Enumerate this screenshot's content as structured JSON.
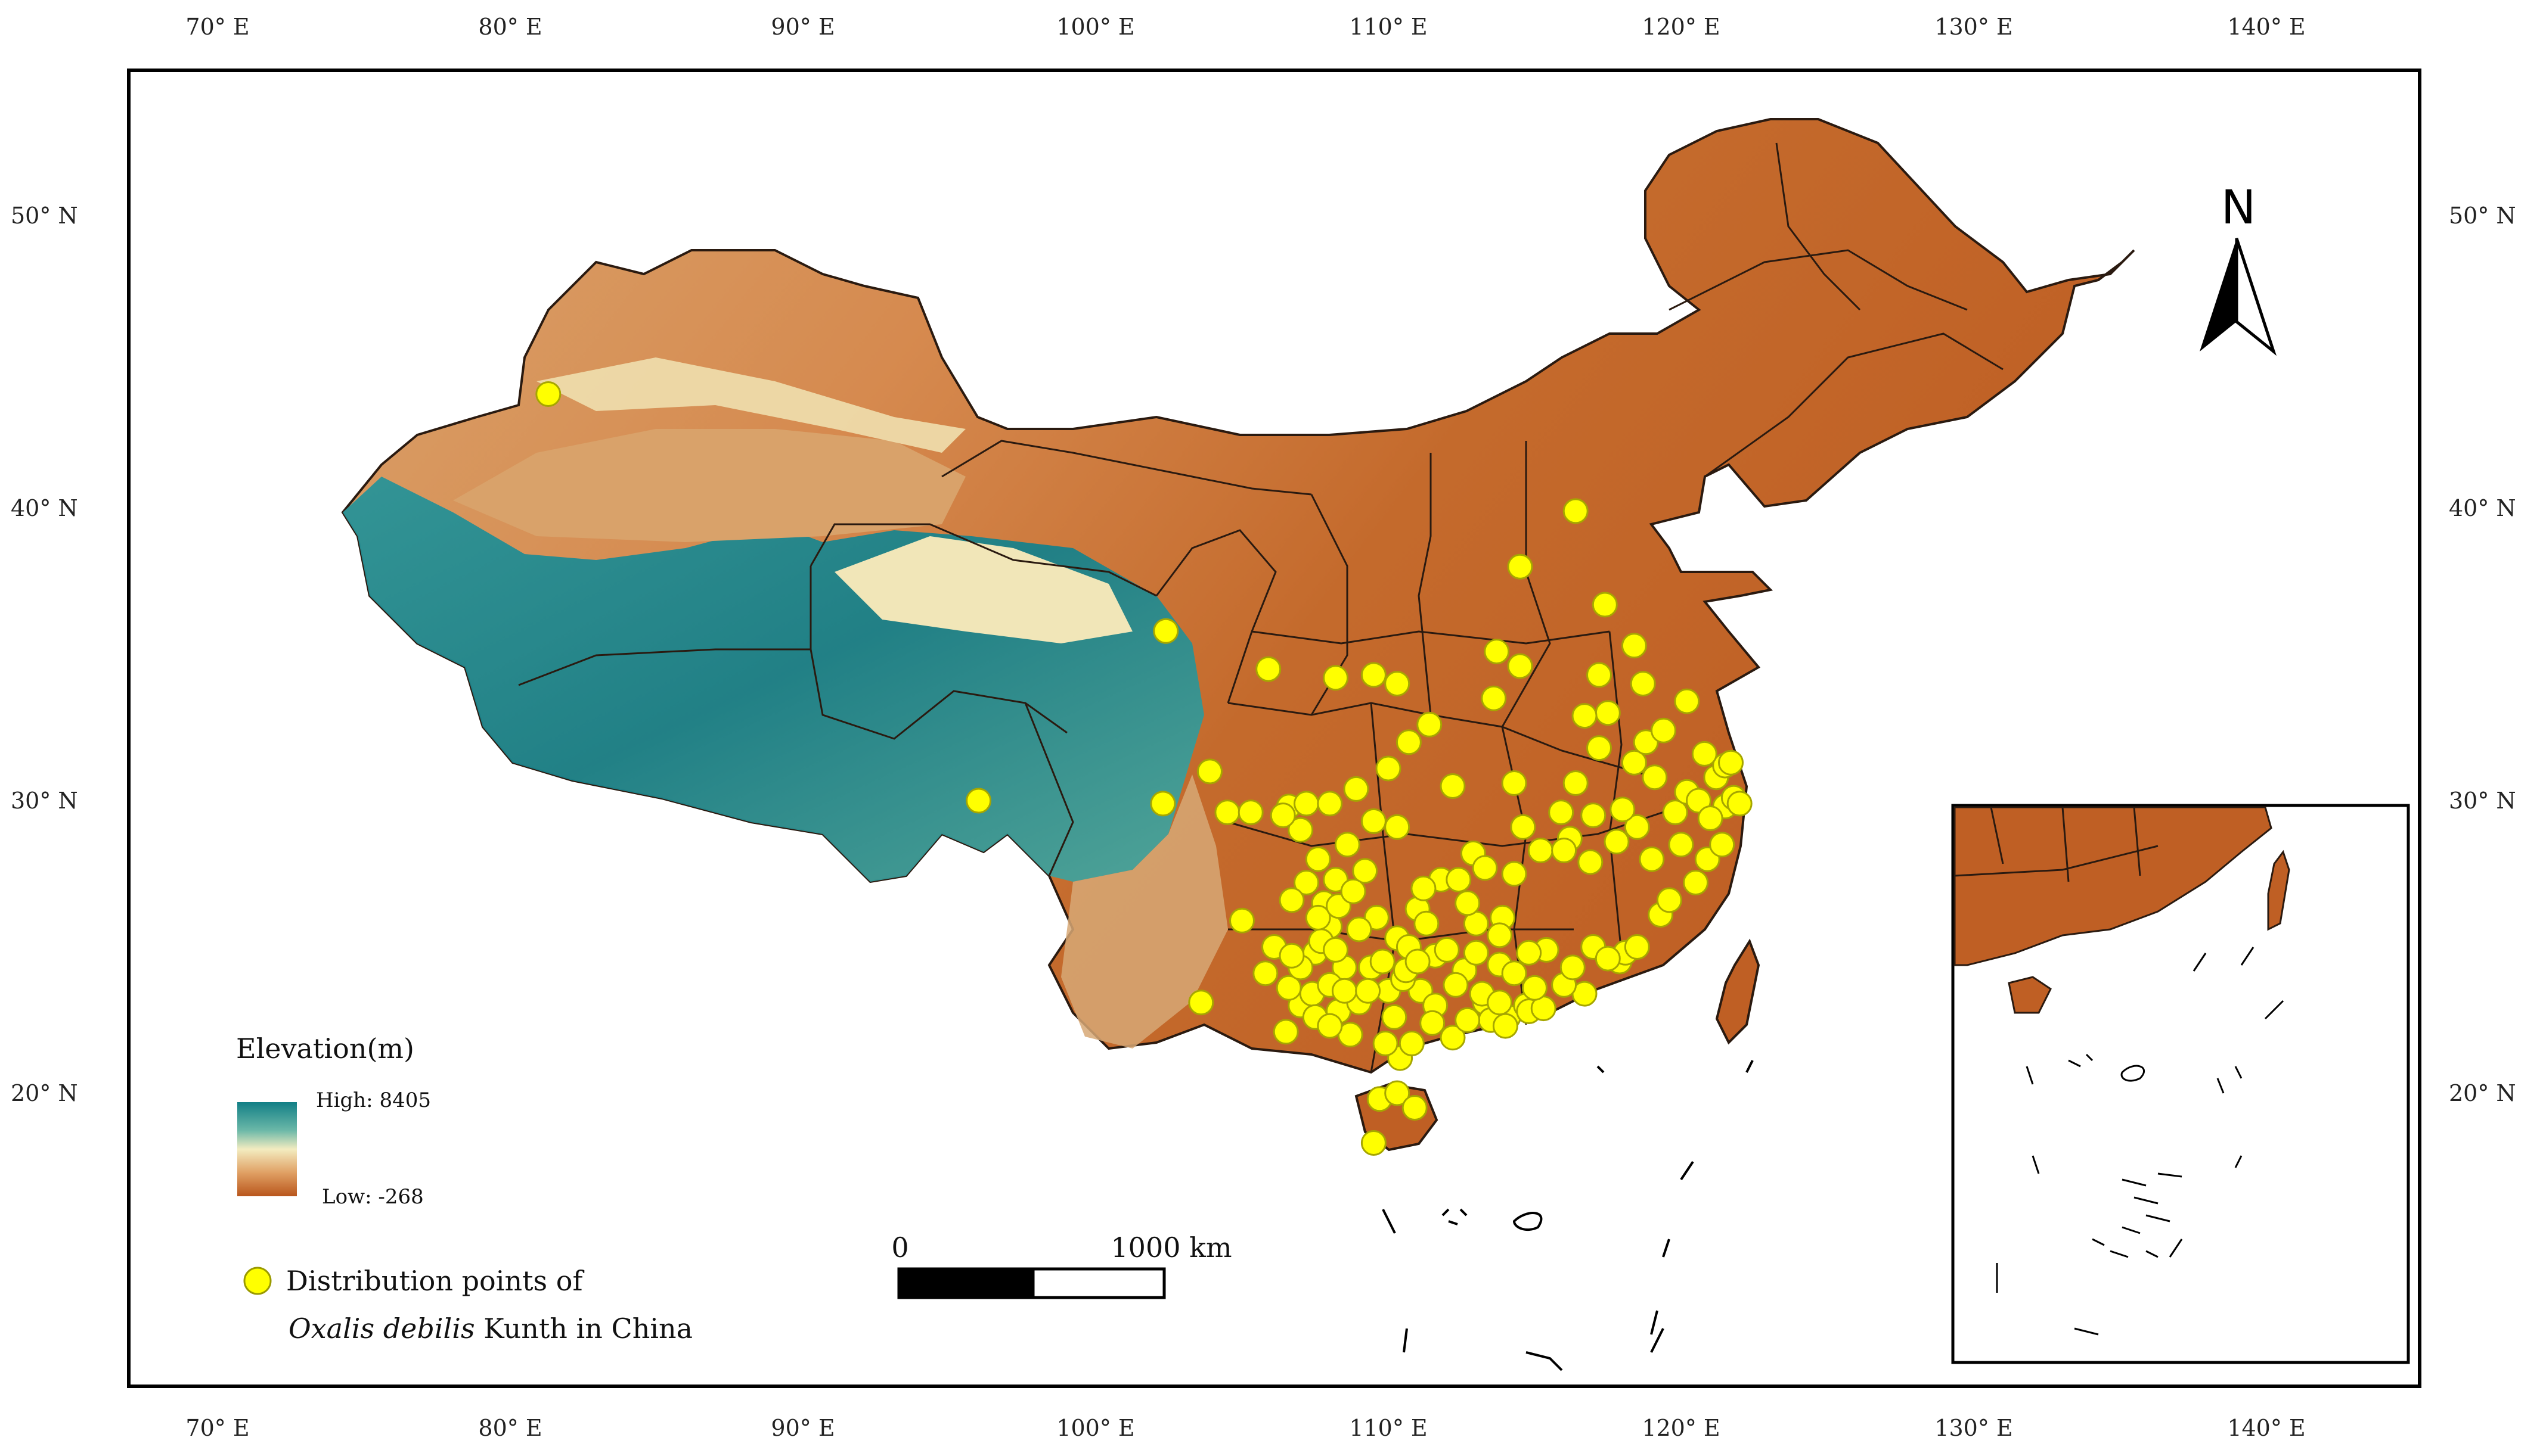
{
  "x_ticks": [
    "70° E",
    "80° E",
    "90° E",
    "100° E",
    "110° E",
    "120° E",
    "130° E",
    "140° E"
  ],
  "y_ticks": [
    "50° N",
    "40° N",
    "30° N",
    "20° N"
  ],
  "north_arrow": {
    "label": "N",
    "icon": "north-arrow-icon"
  },
  "legend": {
    "title": "Elevation(m)",
    "high_label": "High: 8405",
    "low_label": "Low: -268",
    "gradient_colors": [
      "#127f86",
      "#6bb8a8",
      "#f3ecc0",
      "#e0a064",
      "#b9561c"
    ],
    "points_label_line1": "Distribution points of",
    "points_label_italic": "Oxalis debilis",
    "points_label_rest": " Kunth in China",
    "point_color": "#ffff00"
  },
  "scale_bar": {
    "zero": "0",
    "end": "1000 km"
  },
  "colors": {
    "land_low": "#bf5f24",
    "land_mid": "#d58c55",
    "plateau": "#1d8a8e",
    "boundary": "#2a1a10"
  },
  "points": [
    [
      81.3,
      43.9
    ],
    [
      96.0,
      30.0
    ],
    [
      102.4,
      35.8
    ],
    [
      103.6,
      23.1
    ],
    [
      102.3,
      29.9
    ],
    [
      103.9,
      31.0
    ],
    [
      104.5,
      29.6
    ],
    [
      105.3,
      29.6
    ],
    [
      105.9,
      34.5
    ],
    [
      106.6,
      29.8
    ],
    [
      107.2,
      29.9
    ],
    [
      108.0,
      29.9
    ],
    [
      108.9,
      30.4
    ],
    [
      108.2,
      34.2
    ],
    [
      109.5,
      34.3
    ],
    [
      110.0,
      31.1
    ],
    [
      110.3,
      34.0
    ],
    [
      111.4,
      32.6
    ],
    [
      110.7,
      32.0
    ],
    [
      112.2,
      30.5
    ],
    [
      110.3,
      29.1
    ],
    [
      109.2,
      27.6
    ],
    [
      108.2,
      27.3
    ],
    [
      107.2,
      27.2
    ],
    [
      106.7,
      26.6
    ],
    [
      107.8,
      26.5
    ],
    [
      109.6,
      26.0
    ],
    [
      110.3,
      25.3
    ],
    [
      111.0,
      26.3
    ],
    [
      111.8,
      27.3
    ],
    [
      112.9,
      28.2
    ],
    [
      113.3,
      27.7
    ],
    [
      114.3,
      27.5
    ],
    [
      113.9,
      26.0
    ],
    [
      113.0,
      25.8
    ],
    [
      111.6,
      24.7
    ],
    [
      112.6,
      24.2
    ],
    [
      113.3,
      23.1
    ],
    [
      114.1,
      22.6
    ],
    [
      114.7,
      23.0
    ],
    [
      113.8,
      24.4
    ],
    [
      115.4,
      24.9
    ],
    [
      116.7,
      23.4
    ],
    [
      117.9,
      24.5
    ],
    [
      118.1,
      24.8
    ],
    [
      119.3,
      26.1
    ],
    [
      119.6,
      26.6
    ],
    [
      116.9,
      27.9
    ],
    [
      117.8,
      28.6
    ],
    [
      118.5,
      29.1
    ],
    [
      119.8,
      29.6
    ],
    [
      120.2,
      30.3
    ],
    [
      121.2,
      30.8
    ],
    [
      121.5,
      31.2
    ],
    [
      120.8,
      31.6
    ],
    [
      120.6,
      30.0
    ],
    [
      121.5,
      29.8
    ],
    [
      120.9,
      28.0
    ],
    [
      121.4,
      28.5
    ],
    [
      120.5,
      27.2
    ],
    [
      119.1,
      30.8
    ],
    [
      118.4,
      31.3
    ],
    [
      117.2,
      31.8
    ],
    [
      116.4,
      30.6
    ],
    [
      115.9,
      29.6
    ],
    [
      115.2,
      28.3
    ],
    [
      116.2,
      28.7
    ],
    [
      114.6,
      29.1
    ],
    [
      114.3,
      30.6
    ],
    [
      113.6,
      33.5
    ],
    [
      114.5,
      34.6
    ],
    [
      113.7,
      35.1
    ],
    [
      114.5,
      38.0
    ],
    [
      116.4,
      39.9
    ],
    [
      117.4,
      36.7
    ],
    [
      118.4,
      35.3
    ],
    [
      117.2,
      34.3
    ],
    [
      118.8,
      32.0
    ],
    [
      119.4,
      32.4
    ],
    [
      120.2,
      33.4
    ],
    [
      108.5,
      24.3
    ],
    [
      108.3,
      22.8
    ],
    [
      109.4,
      24.3
    ],
    [
      110.2,
      22.6
    ],
    [
      110.4,
      21.2
    ],
    [
      109.7,
      19.8
    ],
    [
      109.5,
      18.3
    ],
    [
      110.3,
      20.0
    ],
    [
      110.9,
      19.5
    ],
    [
      106.5,
      22.1
    ],
    [
      107.0,
      23.0
    ],
    [
      105.8,
      24.1
    ],
    [
      105.0,
      25.9
    ],
    [
      106.1,
      25.0
    ],
    [
      107.5,
      24.8
    ],
    [
      106.6,
      23.6
    ],
    [
      107.4,
      23.4
    ],
    [
      108.0,
      23.7
    ],
    [
      109.0,
      23.1
    ],
    [
      110.0,
      23.5
    ],
    [
      111.1,
      23.5
    ],
    [
      111.6,
      23.0
    ],
    [
      112.3,
      23.7
    ],
    [
      113.0,
      24.8
    ],
    [
      112.0,
      24.9
    ],
    [
      111.3,
      25.8
    ],
    [
      110.7,
      25.0
    ],
    [
      109.8,
      24.5
    ],
    [
      110.5,
      23.9
    ],
    [
      111.5,
      22.4
    ],
    [
      112.2,
      21.9
    ],
    [
      113.5,
      22.5
    ],
    [
      114.0,
      22.3
    ],
    [
      114.8,
      22.8
    ],
    [
      115.3,
      22.9
    ],
    [
      110.8,
      21.7
    ],
    [
      111.2,
      27.0
    ],
    [
      112.4,
      27.3
    ],
    [
      109.5,
      29.3
    ],
    [
      108.6,
      28.5
    ],
    [
      109.0,
      25.6
    ],
    [
      108.0,
      25.7
    ],
    [
      107.7,
      25.2
    ],
    [
      107.0,
      24.3
    ],
    [
      107.5,
      22.6
    ],
    [
      108.7,
      22.0
    ],
    [
      109.9,
      21.7
    ],
    [
      110.6,
      24.2
    ],
    [
      111.0,
      24.5
    ],
    [
      112.7,
      26.5
    ],
    [
      113.2,
      23.4
    ],
    [
      113.8,
      23.1
    ],
    [
      114.3,
      24.1
    ],
    [
      115.0,
      23.6
    ],
    [
      116.0,
      23.7
    ],
    [
      116.3,
      24.3
    ],
    [
      117.0,
      25.0
    ],
    [
      117.5,
      24.6
    ],
    [
      118.5,
      25.0
    ],
    [
      117.0,
      29.5
    ],
    [
      116.0,
      28.3
    ],
    [
      118.0,
      29.7
    ],
    [
      119.0,
      28.0
    ],
    [
      120.0,
      28.5
    ],
    [
      121.0,
      29.4
    ],
    [
      121.8,
      30.1
    ],
    [
      122.0,
      29.9
    ],
    [
      121.7,
      31.3
    ],
    [
      117.5,
      33.0
    ],
    [
      118.7,
      34.0
    ],
    [
      116.7,
      32.9
    ],
    [
      113.8,
      25.4
    ],
    [
      114.8,
      24.8
    ],
    [
      112.7,
      22.5
    ],
    [
      108.0,
      22.3
    ],
    [
      108.5,
      23.5
    ],
    [
      106.7,
      24.7
    ],
    [
      107.6,
      26.0
    ],
    [
      108.3,
      26.4
    ],
    [
      107.6,
      28.0
    ],
    [
      107.0,
      29.0
    ],
    [
      106.4,
      29.5
    ],
    [
      108.8,
      26.9
    ],
    [
      108.2,
      24.9
    ],
    [
      109.3,
      23.5
    ]
  ]
}
